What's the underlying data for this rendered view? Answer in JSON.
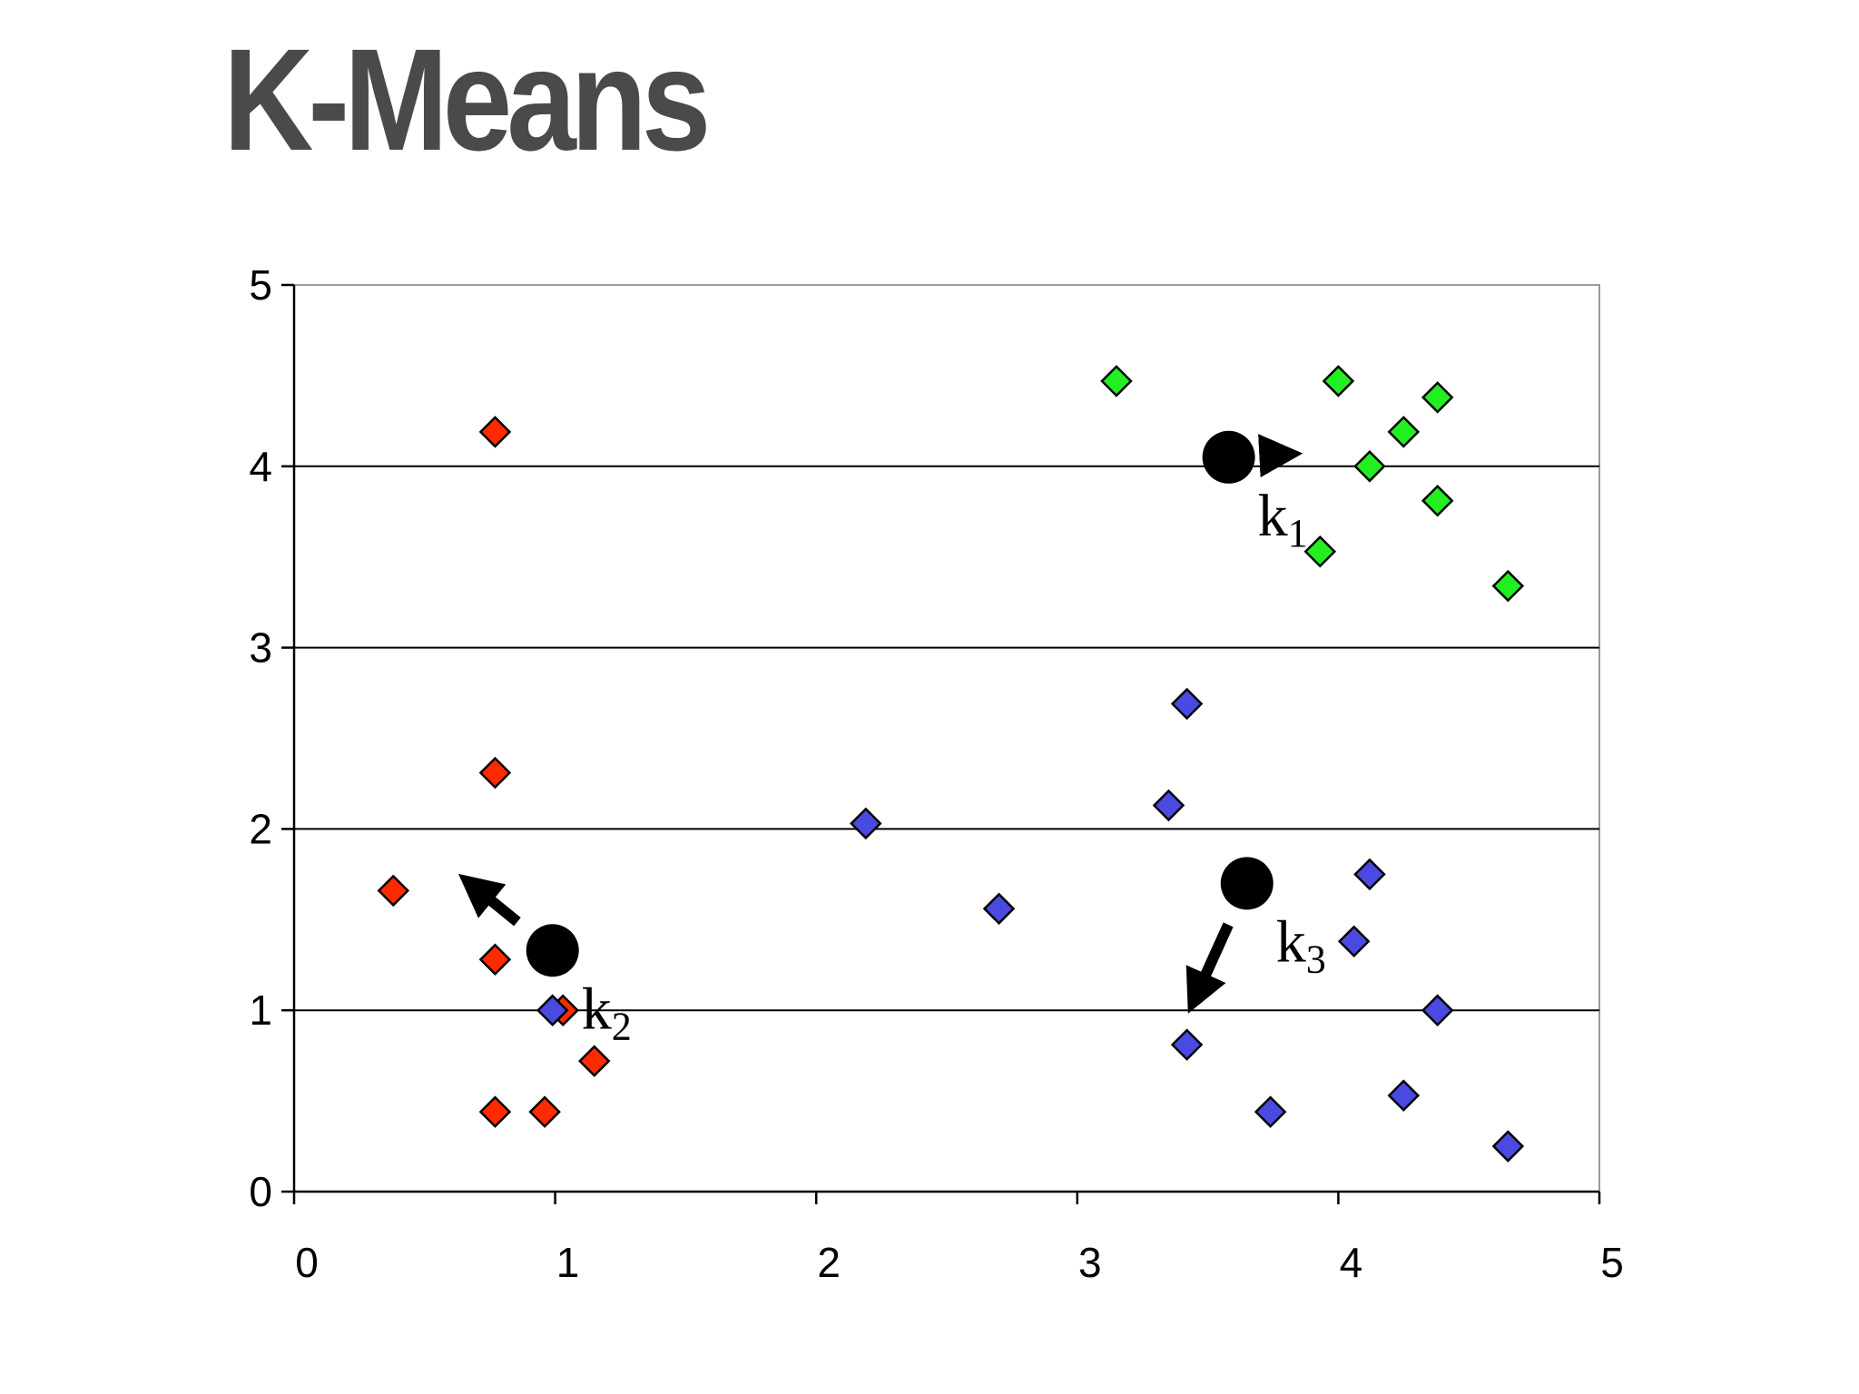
{
  "title": "K-Means",
  "colors": {
    "cluster_1": "#22ee22",
    "cluster_2": "#ff2a00",
    "cluster_3": "#4a4ae0",
    "centroid": "#000000",
    "title": "#4a4a4a"
  },
  "chart_data": {
    "type": "scatter",
    "title": "",
    "xlabel": "",
    "ylabel": "",
    "xlim": [
      0,
      5
    ],
    "ylim": [
      0,
      5
    ],
    "x_ticks": [
      "0",
      "1",
      "2",
      "3",
      "4",
      "5"
    ],
    "y_ticks": [
      "0",
      "1",
      "2",
      "3",
      "4",
      "5"
    ],
    "grid": "horizontal",
    "legend": "none",
    "series": [
      {
        "color": "#22ee22",
        "marker": "diamond",
        "points": [
          [
            3.15,
            4.47
          ],
          [
            4.0,
            4.47
          ],
          [
            4.38,
            4.38
          ],
          [
            4.25,
            4.19
          ],
          [
            4.12,
            4.0
          ],
          [
            4.38,
            3.81
          ],
          [
            3.93,
            3.53
          ],
          [
            4.65,
            3.34
          ]
        ]
      },
      {
        "color": "#ff2a00",
        "marker": "diamond",
        "points": [
          [
            0.77,
            4.19
          ],
          [
            0.77,
            2.31
          ],
          [
            0.38,
            1.66
          ],
          [
            0.77,
            1.28
          ],
          [
            1.03,
            1.0
          ],
          [
            1.15,
            0.72
          ],
          [
            0.77,
            0.44
          ],
          [
            0.96,
            0.44
          ]
        ]
      },
      {
        "color": "#4a4ae0",
        "marker": "diamond",
        "points": [
          [
            3.42,
            2.69
          ],
          [
            2.19,
            2.03
          ],
          [
            3.35,
            2.13
          ],
          [
            4.12,
            1.75
          ],
          [
            2.7,
            1.56
          ],
          [
            4.06,
            1.38
          ],
          [
            0.99,
            1.0
          ],
          [
            4.38,
            1.0
          ],
          [
            3.42,
            0.81
          ],
          [
            3.74,
            0.44
          ],
          [
            4.25,
            0.53
          ],
          [
            4.65,
            0.25
          ]
        ]
      }
    ],
    "centroids": [
      {
        "label": "k",
        "subscript": "1",
        "x": 3.58,
        "y": 4.05,
        "move_to": [
          3.85,
          4.07
        ]
      },
      {
        "label": "k",
        "subscript": "2",
        "x": 0.99,
        "y": 1.33,
        "move_to": [
          0.64,
          1.74
        ]
      },
      {
        "label": "k",
        "subscript": "3",
        "x": 3.65,
        "y": 1.7,
        "move_to": [
          3.43,
          1.0
        ]
      }
    ]
  }
}
